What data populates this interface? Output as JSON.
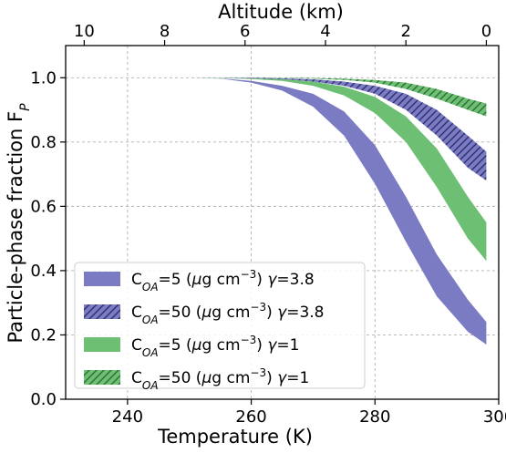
{
  "chart_data": {
    "type": "area",
    "xlabel": "Temperature (K)",
    "top_xlabel": "Altitude (km)",
    "ylabel": "Particle-phase fraction F",
    "ylabel_sub": "P",
    "xlim": [
      230,
      300
    ],
    "ylim": [
      0.0,
      1.1
    ],
    "x_ticks": [
      240,
      260,
      280,
      300
    ],
    "y_ticks": [
      0.0,
      0.2,
      0.4,
      0.6,
      0.8,
      1.0
    ],
    "top_ticks": [
      {
        "label": "10",
        "temperature": 233
      },
      {
        "label": "8",
        "temperature": 246
      },
      {
        "label": "6",
        "temperature": 259
      },
      {
        "label": "4",
        "temperature": 272
      },
      {
        "label": "2",
        "temperature": 285
      },
      {
        "label": "0",
        "temperature": 298
      }
    ],
    "grid": true,
    "legend_position": "lower-left",
    "colors": {
      "purple": "#7b7bc4",
      "green": "#6dbf73"
    },
    "series": [
      {
        "legend": {
          "pre": "C",
          "sub": "OA",
          "mid": "=5 (",
          "mu": "μ",
          "unit": "g cm",
          "sup": "−3",
          "gpre": ") ",
          "gamma": "γ",
          "gval": "=3.8"
        },
        "color": "#7b7bc4",
        "hatch": false,
        "x": [
          250,
          255,
          260,
          265,
          270,
          275,
          280,
          285,
          290,
          295,
          298
        ],
        "upper": [
          1.0,
          0.998,
          0.99,
          0.975,
          0.95,
          0.895,
          0.79,
          0.63,
          0.45,
          0.31,
          0.24
        ],
        "lower": [
          1.0,
          0.997,
          0.985,
          0.96,
          0.91,
          0.82,
          0.67,
          0.49,
          0.32,
          0.21,
          0.17
        ]
      },
      {
        "legend": {
          "pre": "C",
          "sub": "OA",
          "mid": "=50 (",
          "mu": "μ",
          "unit": "g cm",
          "sup": "−3",
          "gpre": ") ",
          "gamma": "γ",
          "gval": "=3.8"
        },
        "color": "#7b7bc4",
        "hatch": true,
        "x": [
          250,
          255,
          260,
          265,
          270,
          275,
          280,
          285,
          290,
          295,
          298
        ],
        "upper": [
          1.0,
          1.0,
          1.0,
          0.998,
          0.995,
          0.988,
          0.975,
          0.95,
          0.9,
          0.82,
          0.77
        ],
        "lower": [
          1.0,
          1.0,
          0.998,
          0.995,
          0.988,
          0.975,
          0.95,
          0.9,
          0.82,
          0.72,
          0.68
        ]
      },
      {
        "legend": {
          "pre": "C",
          "sub": "OA",
          "mid": "=5 (",
          "mu": "μ",
          "unit": "g cm",
          "sup": "−3",
          "gpre": ") ",
          "gamma": "γ",
          "gval": "=1"
        },
        "color": "#6dbf73",
        "hatch": false,
        "x": [
          250,
          255,
          260,
          265,
          270,
          275,
          280,
          285,
          290,
          295,
          298
        ],
        "upper": [
          1.0,
          1.0,
          0.998,
          0.995,
          0.988,
          0.972,
          0.94,
          0.88,
          0.78,
          0.63,
          0.55
        ],
        "lower": [
          1.0,
          0.999,
          0.996,
          0.99,
          0.975,
          0.945,
          0.89,
          0.8,
          0.66,
          0.5,
          0.43
        ]
      },
      {
        "legend": {
          "pre": "C",
          "sub": "OA",
          "mid": "=50 (",
          "mu": "μ",
          "unit": "g cm",
          "sup": "−3",
          "gpre": ") ",
          "gamma": "γ",
          "gval": "=1"
        },
        "color": "#6dbf73",
        "hatch": true,
        "x": [
          250,
          255,
          260,
          265,
          270,
          275,
          280,
          285,
          290,
          295,
          298
        ],
        "upper": [
          1.0,
          1.0,
          1.0,
          1.0,
          0.999,
          0.997,
          0.993,
          0.985,
          0.965,
          0.935,
          0.92
        ],
        "lower": [
          1.0,
          1.0,
          1.0,
          0.999,
          0.997,
          0.993,
          0.985,
          0.965,
          0.935,
          0.9,
          0.88
        ]
      }
    ]
  }
}
